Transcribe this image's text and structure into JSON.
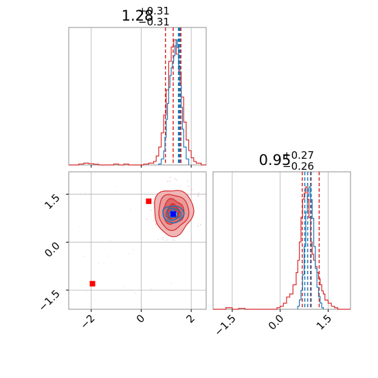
{
  "chart_data": {
    "type": "corner",
    "parameters": [
      {
        "title_value": "1.28",
        "title_plus": "+0.31",
        "title_minus": "−0.31",
        "range": [
          -2.9,
          2.6
        ],
        "ticks": [
          -2,
          0,
          2
        ],
        "tick_labels": [
          "−2",
          "0",
          "2"
        ]
      },
      {
        "title_value": "0.95",
        "title_plus": "+0.27",
        "title_minus": "−0.26",
        "range": [
          -2.1,
          2.2
        ],
        "ticks": [
          -1.5,
          0.0,
          1.5
        ],
        "tick_labels": [
          "−1.5",
          "0.0",
          "1.5"
        ]
      }
    ],
    "series": [
      {
        "color": "#d62728",
        "hist_x": {
          "edges": [
            -2.9,
            -2.7,
            -2.5,
            -2.3,
            -2.1,
            -1.9,
            -1.7,
            -1.5,
            -1.3,
            -1.1,
            -0.9,
            -0.7,
            -0.5,
            -0.3,
            -0.1,
            0.1,
            0.3,
            0.5,
            0.6,
            0.7,
            0.8,
            0.9,
            1.0,
            1.1,
            1.2,
            1.3,
            1.4,
            1.5,
            1.6,
            1.7,
            1.8,
            1.9,
            2.0,
            2.1,
            2.2,
            2.4,
            2.6
          ],
          "counts": [
            0,
            0,
            0.5,
            1,
            0.7,
            0.4,
            0,
            0,
            0,
            0.5,
            0,
            0.5,
            0,
            0,
            0,
            0.5,
            1,
            2,
            5,
            10,
            18,
            28,
            42,
            58,
            66,
            70,
            62,
            52,
            38,
            24,
            14,
            8,
            4,
            2,
            1,
            0
          ]
        },
        "hist_y": {
          "edges": [
            -2.1,
            -1.9,
            -1.7,
            -1.5,
            -1.3,
            -1.1,
            -0.9,
            -0.7,
            -0.5,
            -0.3,
            -0.1,
            0.0,
            0.1,
            0.2,
            0.3,
            0.4,
            0.5,
            0.55,
            0.6,
            0.65,
            0.7,
            0.75,
            0.8,
            0.85,
            0.9,
            0.95,
            1.0,
            1.05,
            1.1,
            1.15,
            1.2,
            1.25,
            1.3,
            1.35,
            1.4,
            1.5,
            1.6,
            1.7,
            1.8,
            2.0,
            2.2
          ],
          "counts": [
            0,
            0,
            0.5,
            0,
            0.3,
            0,
            0,
            0,
            0,
            0,
            0.5,
            1,
            2,
            4,
            5,
            8,
            12,
            16,
            22,
            30,
            36,
            38,
            40,
            36,
            30,
            22,
            18,
            16,
            14,
            12,
            10,
            8,
            6,
            5,
            3,
            2,
            1,
            0.5,
            0,
            0
          ]
        },
        "quantiles_x": [
          0.97,
          1.59
        ],
        "quantiles_y": [
          0.69,
          1.22
        ],
        "median_x": 1.28,
        "median_y": 0.95,
        "marker_points": [
          [
            0.3,
            1.28
          ],
          [
            -1.95,
            -1.3
          ]
        ]
      },
      {
        "color": "#1f77b4",
        "hist_x": {
          "edges": [
            0.7,
            0.8,
            0.9,
            0.95,
            1.0,
            1.05,
            1.1,
            1.15,
            1.2,
            1.25,
            1.3,
            1.35,
            1.4,
            1.45,
            1.5,
            1.55,
            1.6,
            1.65,
            1.7,
            1.8,
            1.9
          ],
          "counts": [
            1,
            6,
            14,
            28,
            46,
            62,
            78,
            90,
            98,
            104,
            110,
            120,
            126,
            118,
            100,
            80,
            58,
            36,
            18,
            6
          ]
        },
        "hist_y": {
          "edges": [
            0.55,
            0.6,
            0.65,
            0.7,
            0.75,
            0.8,
            0.85,
            0.9,
            0.95,
            1.0,
            1.05,
            1.1,
            1.15,
            1.2,
            1.25,
            1.3,
            1.35
          ],
          "counts": [
            2,
            6,
            12,
            22,
            40,
            62,
            72,
            78,
            70,
            58,
            40,
            26,
            14,
            8,
            4,
            1
          ]
        },
        "quantiles_x": [
          1.49,
          1.55
        ],
        "median_x": 1.52,
        "quantiles_y": [
          0.77,
          0.97
        ],
        "median_y": 0.86,
        "marker_points": [
          [
            1.28,
            0.88
          ]
        ]
      }
    ],
    "grid": true,
    "legend": "none"
  }
}
